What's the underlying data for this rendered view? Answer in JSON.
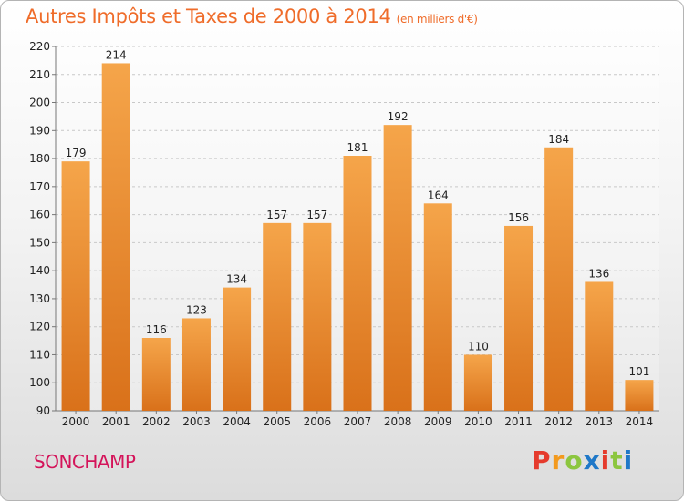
{
  "header": {
    "title": "Autres Impôts et Taxes de 2000 à 2014",
    "unit": "(en milliers d'€)"
  },
  "footer": {
    "place": "SONCHAMP",
    "logo": [
      "P",
      "r",
      "o",
      "x",
      "i",
      "t",
      "i"
    ]
  },
  "colors": {
    "bar_top": "#f5a54a",
    "bar_bottom": "#d9711a",
    "title": "#ef6c2a",
    "place": "#d4145a",
    "logo": [
      "#e53b2d",
      "#f39a1e",
      "#8cc63f",
      "#1f78c8",
      "#e53b2d",
      "#8cc63f",
      "#1f78c8"
    ]
  },
  "chart_data": {
    "type": "bar",
    "categories": [
      "2000",
      "2001",
      "2002",
      "2003",
      "2004",
      "2005",
      "2006",
      "2007",
      "2008",
      "2009",
      "2010",
      "2011",
      "2012",
      "2013",
      "2014"
    ],
    "values": [
      179,
      214,
      116,
      123,
      134,
      157,
      157,
      181,
      192,
      164,
      110,
      156,
      184,
      136,
      101
    ],
    "ylim": [
      90,
      220
    ],
    "yticks": [
      90,
      100,
      110,
      120,
      130,
      140,
      150,
      160,
      170,
      180,
      190,
      200,
      210,
      220
    ],
    "grid": true,
    "title": "Autres Impôts et Taxes de 2000 à 2014",
    "ylabel": "",
    "xlabel": ""
  }
}
